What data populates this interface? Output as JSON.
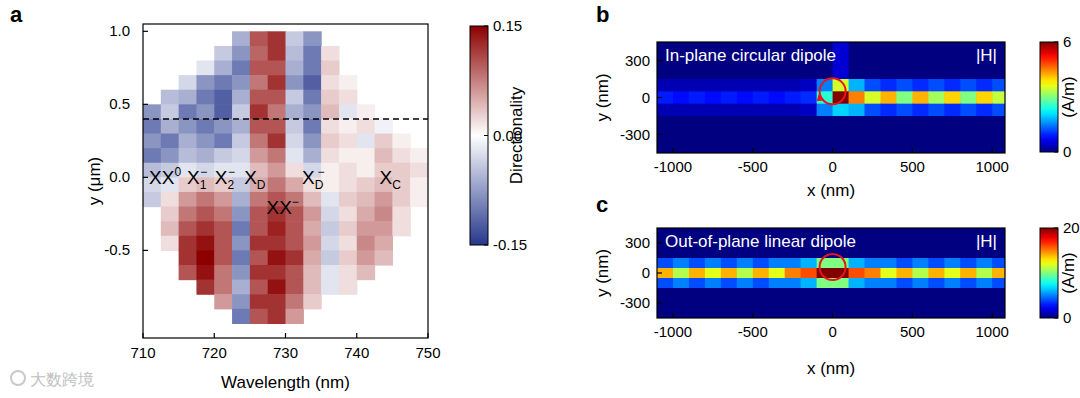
{
  "chart_data": [
    {
      "type": "heatmap",
      "panel": "a",
      "xlabel": "Wavelength (nm)",
      "ylabel": "y (μm)",
      "xlim": [
        710,
        750
      ],
      "ylim": [
        -1.1,
        1.05
      ],
      "xticks": [
        710,
        720,
        730,
        740,
        750
      ],
      "yticks": [
        -0.5,
        {
          "value": 0,
          "label": "0.0"
        },
        0.5,
        {
          "value": 1,
          "label": "1.0"
        }
      ],
      "x_bins": [
        710,
        712.5,
        715,
        717.5,
        720,
        722.5,
        725,
        727.5,
        730,
        732.5,
        735,
        737.5,
        740,
        742.5,
        745,
        747.5,
        750
      ],
      "y_bins": [
        1.0,
        0.9,
        0.8,
        0.7,
        0.6,
        0.5,
        0.4,
        0.3,
        0.2,
        0.1,
        0.0,
        -0.1,
        -0.2,
        -0.3,
        -0.4,
        -0.5,
        -0.6,
        -0.7,
        -0.8,
        -0.9,
        -1.0
      ],
      "cells": [
        [
          null,
          null,
          null,
          null,
          null,
          -0.06,
          0.1,
          0.12,
          -0.04,
          -0.08,
          null,
          null,
          null,
          null,
          null,
          null
        ],
        [
          null,
          null,
          null,
          null,
          -0.04,
          -0.08,
          0.09,
          0.12,
          -0.05,
          -0.1,
          0.02,
          null,
          null,
          null,
          null,
          null
        ],
        [
          null,
          null,
          null,
          -0.02,
          -0.06,
          -0.1,
          0.1,
          0.1,
          -0.06,
          -0.1,
          0.03,
          null,
          null,
          null,
          null,
          null
        ],
        [
          null,
          null,
          -0.03,
          -0.08,
          -0.1,
          -0.08,
          0.08,
          0.12,
          -0.08,
          -0.12,
          0.02,
          0.01,
          null,
          null,
          null,
          null
        ],
        [
          null,
          -0.05,
          -0.06,
          -0.1,
          -0.12,
          -0.06,
          0.1,
          0.1,
          -0.04,
          -0.1,
          0.03,
          0.02,
          null,
          null,
          null,
          null
        ],
        [
          -0.08,
          -0.04,
          -0.1,
          -0.08,
          -0.12,
          -0.04,
          0.12,
          0.08,
          -0.06,
          -0.08,
          0.04,
          -0.02,
          0.01,
          null,
          null,
          null
        ],
        [
          -0.1,
          -0.06,
          -0.08,
          -0.1,
          -0.08,
          -0.06,
          0.1,
          0.1,
          -0.04,
          -0.1,
          0.02,
          0.01,
          0.02,
          -0.01,
          null,
          null
        ],
        [
          -0.08,
          -0.1,
          -0.06,
          -0.08,
          -0.1,
          -0.04,
          0.08,
          0.12,
          -0.03,
          -0.08,
          0.03,
          0.02,
          -0.02,
          0.03,
          0.01,
          null
        ],
        [
          -0.1,
          -0.08,
          -0.05,
          -0.06,
          -0.04,
          -0.03,
          0.06,
          0.08,
          -0.02,
          -0.06,
          0.02,
          0.01,
          0.01,
          0.04,
          0.02,
          0.01
        ],
        [
          -0.05,
          -0.04,
          -0.02,
          -0.03,
          -0.02,
          -0.02,
          0.04,
          0.06,
          0.02,
          -0.03,
          0.01,
          0.02,
          0.01,
          0.03,
          0.03,
          0.02
        ],
        [
          -0.03,
          -0.02,
          0.03,
          0.04,
          0.03,
          -0.04,
          0.05,
          0.08,
          0.05,
          0.02,
          0.01,
          0.02,
          0.03,
          0.04,
          0.03,
          0.01
        ],
        [
          -0.04,
          0.02,
          0.06,
          0.08,
          0.06,
          -0.06,
          0.08,
          0.1,
          0.08,
          0.04,
          -0.02,
          0.03,
          0.04,
          0.06,
          0.03,
          0.01
        ],
        [
          null,
          0.03,
          0.08,
          0.1,
          0.08,
          -0.08,
          0.1,
          0.12,
          0.1,
          0.06,
          -0.03,
          0.02,
          0.05,
          0.07,
          0.02,
          null
        ],
        [
          null,
          0.04,
          0.1,
          0.12,
          0.1,
          -0.1,
          0.1,
          0.13,
          0.1,
          0.05,
          -0.04,
          0.03,
          0.06,
          0.06,
          0.02,
          null
        ],
        [
          null,
          0.02,
          0.12,
          0.14,
          0.1,
          -0.08,
          0.12,
          0.12,
          0.1,
          0.06,
          -0.03,
          0.02,
          0.07,
          0.05,
          null,
          null
        ],
        [
          null,
          null,
          0.12,
          0.15,
          0.1,
          -0.1,
          0.1,
          0.14,
          0.12,
          0.05,
          -0.04,
          0.03,
          0.06,
          0.04,
          null,
          null
        ],
        [
          null,
          null,
          0.1,
          0.14,
          0.08,
          -0.08,
          0.12,
          0.12,
          0.1,
          0.04,
          -0.02,
          0.02,
          0.04,
          null,
          null,
          null
        ],
        [
          null,
          null,
          null,
          0.12,
          0.08,
          -0.06,
          0.1,
          0.14,
          0.1,
          0.04,
          -0.02,
          0.02,
          null,
          null,
          null,
          null
        ],
        [
          null,
          null,
          null,
          null,
          0.06,
          -0.08,
          0.12,
          0.12,
          0.08,
          0.03,
          null,
          null,
          null,
          null,
          null,
          null
        ],
        [
          null,
          null,
          null,
          null,
          null,
          -0.1,
          0.1,
          0.12,
          0.06,
          null,
          null,
          null,
          null,
          null,
          null,
          null
        ]
      ],
      "colorbar_range": [
        -0.15,
        0.15
      ],
      "colorbar_ticks": [
        -0.15,
        {
          "value": 0,
          "label": "0.00"
        },
        0.15
      ],
      "colorbar_label": "Directionality",
      "hline": 0.4,
      "annotations": [
        {
          "base": "XX",
          "sup": "0",
          "x": 713.1,
          "y": 0
        },
        {
          "base": "X",
          "sub": "1",
          "sup": "−",
          "x": 717.6,
          "y": 0
        },
        {
          "base": "X",
          "sub": "2",
          "sup": "−",
          "x": 721.5,
          "y": 0
        },
        {
          "base": "X",
          "sub": "D",
          "x": 725.7,
          "y": 0
        },
        {
          "base": "XX",
          "sup": "−",
          "x": 729.6,
          "y": -0.2
        },
        {
          "base": "X",
          "sub": "D",
          "sup": "−",
          "x": 733.9,
          "y": 0
        },
        {
          "base": "X",
          "sub": "C",
          "x": 744.7,
          "y": 0
        }
      ],
      "watermark": "大数跨境"
    },
    {
      "type": "heatmap",
      "panel": "b",
      "title": "In-plane circular dipole",
      "label": "|H|",
      "xlabel": "x (nm)",
      "ylabel": "y (nm)",
      "xlim": [
        -1100,
        1080
      ],
      "ylim": [
        -450,
        450
      ],
      "xticks": [
        -1000,
        -500,
        0,
        500,
        1000
      ],
      "yticks": [
        -300,
        0,
        300
      ],
      "x_bins": [
        -1100,
        -1000,
        -900,
        -800,
        -700,
        -600,
        -500,
        -400,
        -300,
        -200,
        -100,
        0,
        100,
        200,
        300,
        400,
        500,
        600,
        700,
        800,
        900,
        1000,
        1080
      ],
      "y_bins": [
        450,
        150,
        50,
        -50,
        -150,
        -450
      ],
      "cells": [
        [
          0,
          0,
          0,
          0,
          0,
          0,
          0,
          0,
          0,
          0,
          0,
          0.5,
          0,
          0,
          0,
          0,
          0,
          0,
          0,
          0,
          0,
          0
        ],
        [
          0.3,
          0.3,
          0.3,
          0.3,
          0.3,
          0.3,
          0.3,
          0.3,
          0.3,
          0.4,
          1.5,
          3.5,
          1.8,
          1.2,
          1.0,
          1.2,
          1.0,
          1.2,
          1.0,
          1.2,
          1.0,
          1.2
        ],
        [
          0.9,
          0.8,
          0.9,
          0.8,
          0.9,
          0.8,
          0.9,
          0.8,
          0.9,
          1.0,
          2.5,
          6,
          4.5,
          3.5,
          4.2,
          3.0,
          4.2,
          3.2,
          4.0,
          3.0,
          4.0,
          3.4
        ],
        [
          0.3,
          0.3,
          0.3,
          0.3,
          0.3,
          0.3,
          0.3,
          0.3,
          0.3,
          0.4,
          1.5,
          2.0,
          1.8,
          1.2,
          1.0,
          1.2,
          1.0,
          1.2,
          1.0,
          1.2,
          1.0,
          1.2
        ],
        [
          0,
          0,
          0,
          0,
          0,
          0,
          0,
          0,
          0,
          0,
          0,
          0,
          0,
          0,
          0,
          0,
          0,
          0,
          0,
          0,
          0,
          0
        ]
      ],
      "colorbar_range": [
        0,
        6
      ],
      "colorbar_ticks": [
        0,
        6
      ],
      "colorbar_label": "(A/m)",
      "dipole": [
        0,
        50
      ]
    },
    {
      "type": "heatmap",
      "panel": "c",
      "title": "Out-of-plane linear dipole",
      "label": "|H|",
      "xlabel": "x (nm)",
      "ylabel": "y (nm)",
      "xlim": [
        -1100,
        1080
      ],
      "ylim": [
        -450,
        450
      ],
      "xticks": [
        -1000,
        -500,
        0,
        500,
        1000
      ],
      "yticks": [
        -300,
        0,
        300
      ],
      "x_bins": [
        -1100,
        -1000,
        -900,
        -800,
        -700,
        -600,
        -500,
        -400,
        -300,
        -200,
        -100,
        0,
        100,
        200,
        300,
        400,
        500,
        600,
        700,
        800,
        900,
        1000,
        1080
      ],
      "y_bins": [
        450,
        150,
        50,
        -50,
        -150,
        -450
      ],
      "cells": [
        [
          0,
          0,
          0,
          0,
          0,
          0,
          0,
          0,
          0,
          0,
          0,
          0,
          0,
          0,
          0,
          0,
          0,
          0,
          0,
          0,
          0,
          0
        ],
        [
          4,
          5,
          4,
          5,
          4,
          5,
          4,
          5,
          5,
          6,
          10,
          10,
          6,
          5,
          5,
          4,
          5,
          4,
          5,
          4,
          5,
          4
        ],
        [
          14,
          11,
          14,
          12,
          14,
          11,
          14,
          12,
          15,
          16,
          20,
          20,
          16,
          15,
          12,
          14,
          11,
          14,
          12,
          14,
          11,
          14
        ],
        [
          4,
          5,
          4,
          5,
          4,
          5,
          4,
          5,
          5,
          6,
          10,
          10,
          6,
          5,
          5,
          4,
          5,
          4,
          5,
          4,
          5,
          4
        ],
        [
          0,
          0,
          0,
          0,
          0,
          0,
          0,
          0,
          0,
          0,
          0,
          0,
          0,
          0,
          0,
          0,
          0,
          0,
          0,
          0,
          0,
          0
        ]
      ],
      "colorbar_range": [
        0,
        20
      ],
      "colorbar_ticks": [
        0,
        20
      ],
      "colorbar_label": "(A/m)",
      "dipole": [
        0,
        60
      ]
    }
  ]
}
